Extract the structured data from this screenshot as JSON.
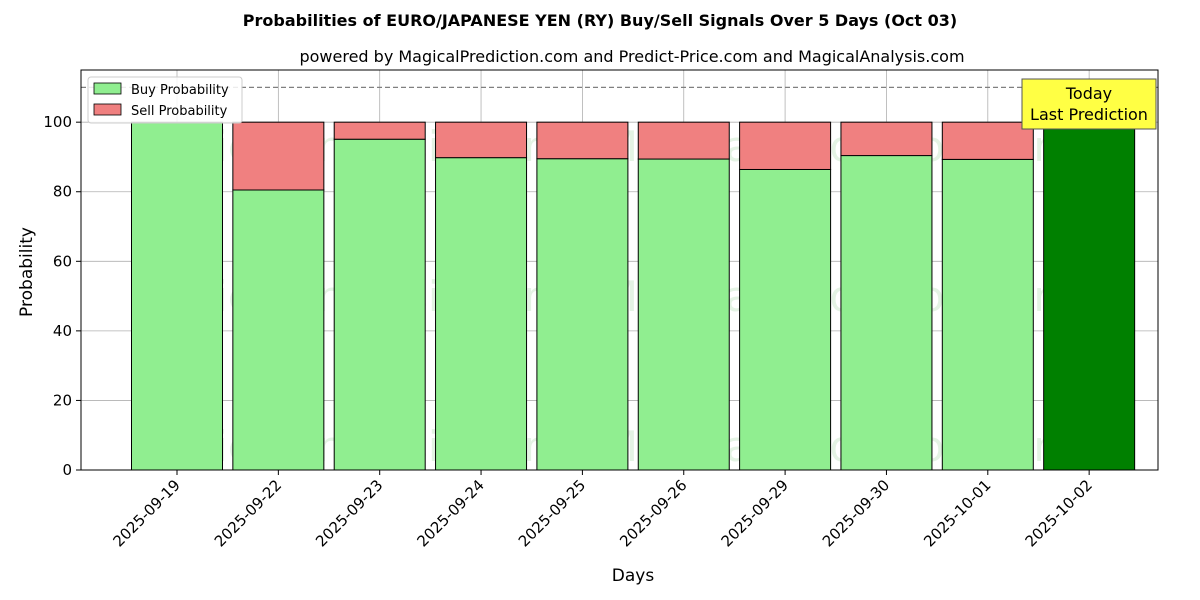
{
  "chart_data": {
    "type": "bar",
    "stacked": true,
    "title": "Probabilities of EURO/JAPANESE YEN (RY) Buy/Sell Signals Over 5 Days (Oct 03)",
    "subtitle": "powered by MagicalPrediction.com and Predict-Price.com and MagicalAnalysis.com",
    "xlabel": "Days",
    "ylabel": "Probability",
    "ylim": [
      0,
      115
    ],
    "yticks": [
      0,
      20,
      40,
      60,
      80,
      100
    ],
    "categories": [
      "2025-09-19",
      "2025-09-22",
      "2025-09-23",
      "2025-09-24",
      "2025-09-25",
      "2025-09-26",
      "2025-09-29",
      "2025-09-30",
      "2025-10-01",
      "2025-10-02"
    ],
    "series": [
      {
        "name": "Buy Probability",
        "color": "#90ee90",
        "values": [
          100,
          80.5,
          95.1,
          89.8,
          89.5,
          89.4,
          86.4,
          90.4,
          89.3,
          100
        ]
      },
      {
        "name": "Sell Probability",
        "color": "#f08080",
        "values": [
          0,
          19.5,
          4.9,
          10.2,
          10.5,
          10.6,
          13.6,
          9.6,
          10.7,
          0
        ]
      }
    ],
    "highlight": {
      "index": 9,
      "color": "#008000"
    },
    "reference_line": {
      "y": 110,
      "style": "dashed",
      "color": "#808080"
    },
    "annotation": {
      "line1": "Today",
      "line2": "Last Prediction",
      "background": "#ffff44"
    },
    "legend": {
      "placement": "top-left"
    },
    "grid": true,
    "watermarks": [
      "MagicalAnalysis.com",
      "MagicalPrediction.com",
      "MagicalAnalysis.com",
      "MagicalPrediction.com",
      "MagicalAnalysis.com",
      "MagicalPrediction.com"
    ]
  }
}
